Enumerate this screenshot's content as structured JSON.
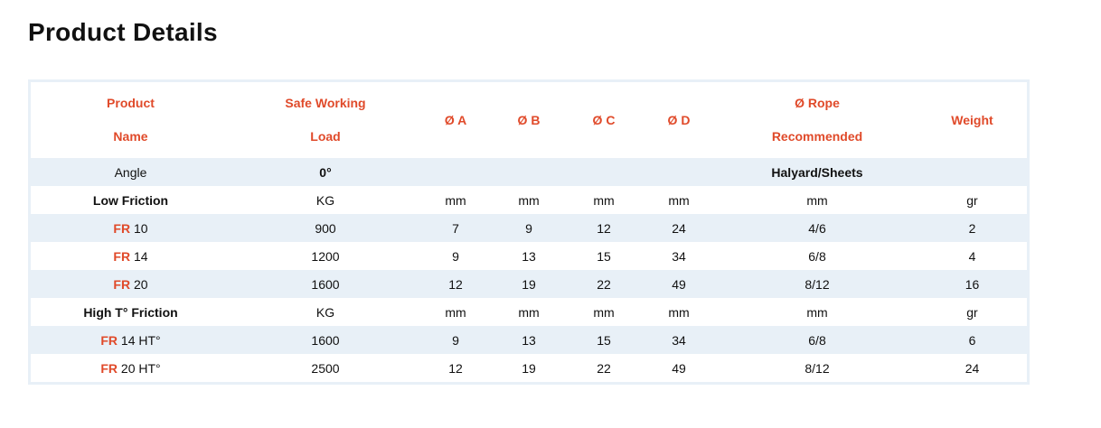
{
  "title": "Product Details",
  "header": {
    "product_1": "Product",
    "product_2": "Name",
    "swl_1": "Safe Working",
    "swl_2": "Load",
    "a": "Ø A",
    "b": "Ø B",
    "c": "Ø C",
    "d": "Ø D",
    "rope_1": "Ø Rope",
    "rope_2": "Recommended",
    "weight": "Weight"
  },
  "rows": [
    {
      "name": "Angle",
      "load": "0°",
      "a": "",
      "b": "",
      "c": "",
      "d": "",
      "rope": "Halyard/Sheets",
      "weight": ""
    },
    {
      "name": "Low Friction",
      "load": "KG",
      "a": "mm",
      "b": "mm",
      "c": "mm",
      "d": "mm",
      "rope": "mm",
      "weight": "gr"
    },
    {
      "prefix": "FR",
      "name": "10",
      "load": "900",
      "a": "7",
      "b": "9",
      "c": "12",
      "d": "24",
      "rope": "4/6",
      "weight": "2"
    },
    {
      "prefix": "FR",
      "name": "14",
      "load": "1200",
      "a": "9",
      "b": "13",
      "c": "15",
      "d": "34",
      "rope": "6/8",
      "weight": "4"
    },
    {
      "prefix": "FR",
      "name": "20",
      "load": "1600",
      "a": "12",
      "b": "19",
      "c": "22",
      "d": "49",
      "rope": "8/12",
      "weight": "16"
    },
    {
      "name": "High T° Friction",
      "load": "KG",
      "a": "mm",
      "b": "mm",
      "c": "mm",
      "d": "mm",
      "rope": "mm",
      "weight": "gr"
    },
    {
      "prefix": "FR",
      "name": "14 HT°",
      "load": "1600",
      "a": "9",
      "b": "13",
      "c": "15",
      "d": "34",
      "rope": "6/8",
      "weight": "6"
    },
    {
      "prefix": "FR",
      "name": "20 HT°",
      "load": "2500",
      "a": "12",
      "b": "19",
      "c": "22",
      "d": "49",
      "rope": "8/12",
      "weight": "24"
    }
  ],
  "colors": {
    "accent": "#e04a2a",
    "stripe": "#e8f0f7"
  }
}
